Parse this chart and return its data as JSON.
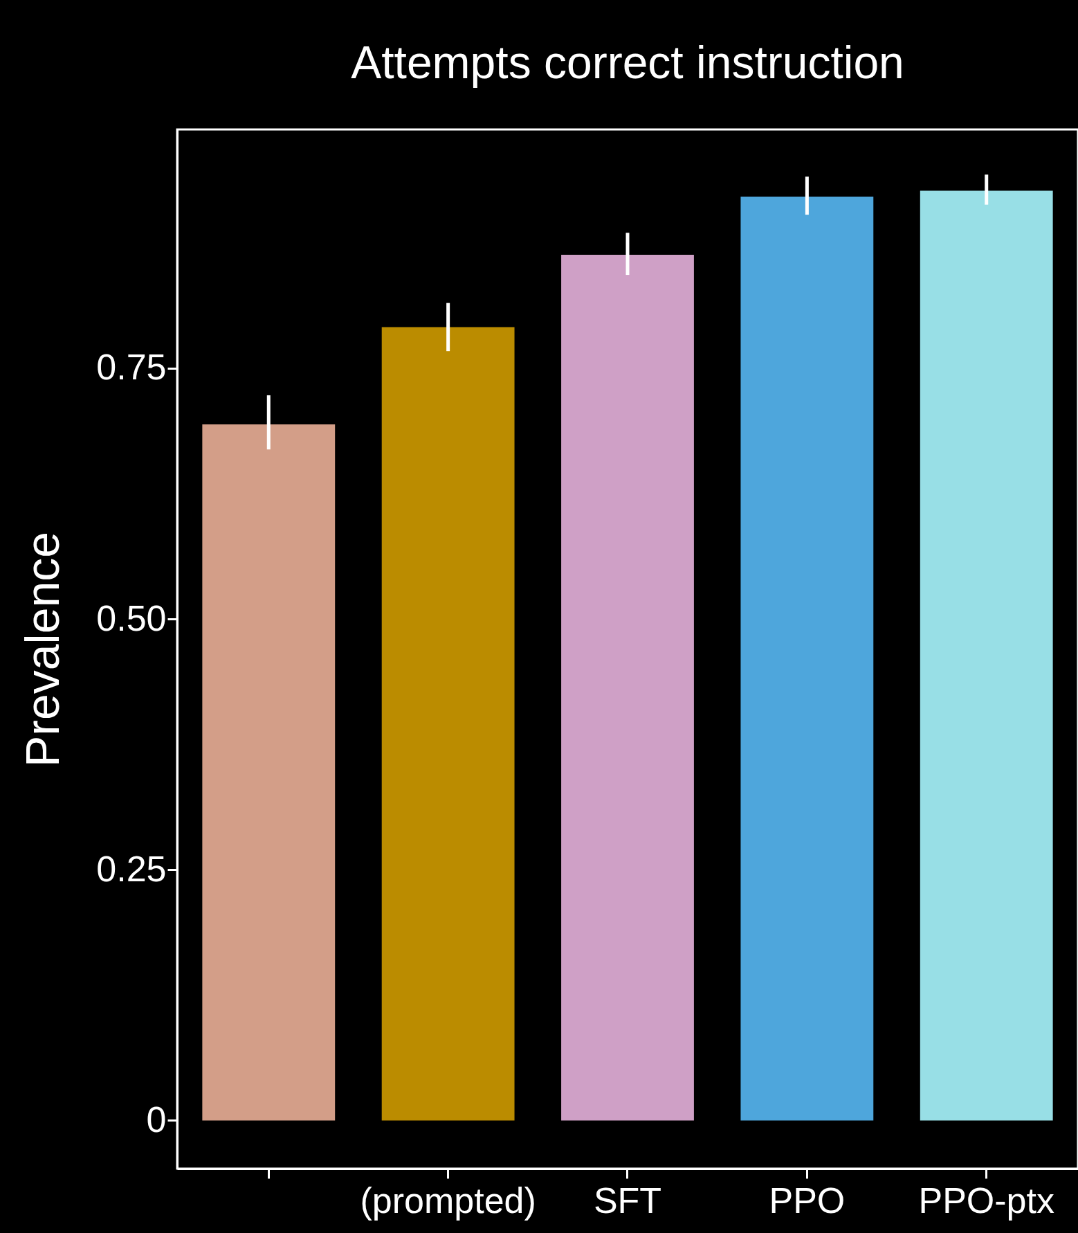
{
  "chart_data": {
    "type": "bar",
    "title": "Attempts correct instruction",
    "ylabel": "Prevalence",
    "categories": [
      null,
      "(prompted)",
      "SFT",
      "PPO",
      "PPO-ptx"
    ],
    "values": [
      0.694,
      0.791,
      0.863,
      0.921,
      0.927
    ],
    "errors": [
      [
        0.669,
        0.723
      ],
      [
        0.767,
        0.815
      ],
      [
        0.843,
        0.885
      ],
      [
        0.903,
        0.941
      ],
      [
        0.913,
        0.943
      ]
    ],
    "colors": [
      "#d39e88",
      "#bb8c00",
      "#cfa0c6",
      "#4ea6dc",
      "#98dfe6"
    ],
    "ylim": [
      -0.048,
      0.988
    ],
    "yticks": [
      {
        "value": 0,
        "label": "0"
      },
      {
        "value": 0.25,
        "label": "0.25"
      },
      {
        "value": 0.5,
        "label": "0.50"
      },
      {
        "value": 0.75,
        "label": "0.75"
      }
    ],
    "grid": false
  }
}
